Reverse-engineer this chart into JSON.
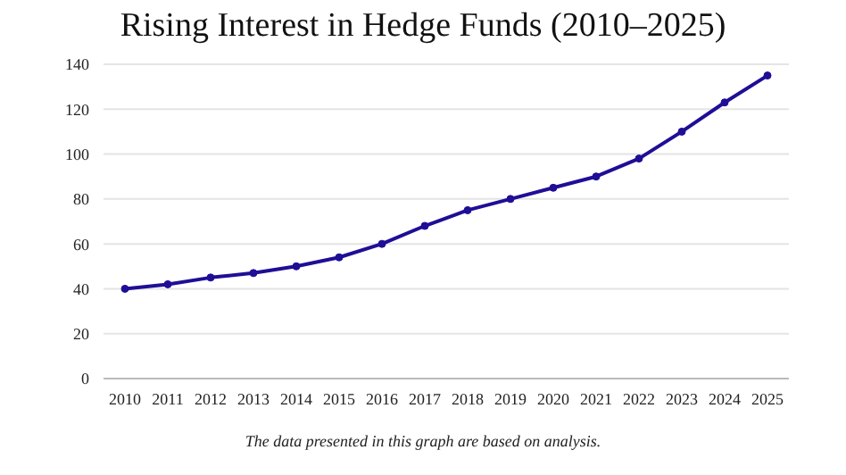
{
  "chart_data": {
    "type": "line",
    "title": "Rising Interest in Hedge Funds (2010–2025)",
    "categories": [
      "2010",
      "2011",
      "2012",
      "2013",
      "2014",
      "2015",
      "2016",
      "2017",
      "2018",
      "2019",
      "2020",
      "2021",
      "2022",
      "2023",
      "2024",
      "2025"
    ],
    "series": [
      {
        "color": "#1f0e96",
        "values": [
          40,
          42,
          45,
          47,
          50,
          54,
          60,
          68,
          75,
          80,
          85,
          90,
          98,
          110,
          123,
          135
        ]
      }
    ],
    "ylim": [
      0,
      140
    ],
    "yticks": [
      0,
      20,
      40,
      60,
      80,
      100,
      120,
      140
    ],
    "grid": "y",
    "marker": "circle",
    "line_style": "solid",
    "annotations": [
      "The data presented in this graph are based on analysis."
    ]
  }
}
